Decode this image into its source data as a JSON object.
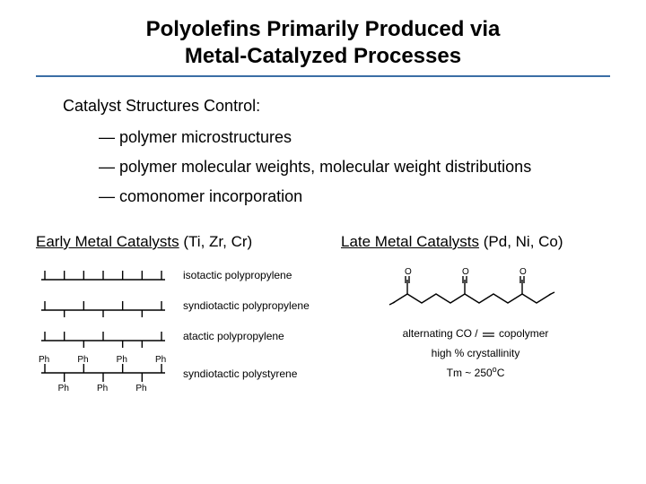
{
  "title_line1": "Polyolefins Primarily Produced via",
  "title_line2": "Metal-Catalyzed Processes",
  "rule_color": "#3b6ea5",
  "lead": "Catalyst Structures Control:",
  "bullets": [
    "— polymer microstructures",
    "— polymer molecular weights, molecular weight distributions",
    "— comonomer incorporation"
  ],
  "left": {
    "heading_underlined": "Early Metal Catalysts",
    "heading_rest": " (Ti, Zr, Cr)",
    "rows": [
      {
        "label": "isotactic polypropylene",
        "type": "iso"
      },
      {
        "label": "syndiotactic polypropylene",
        "type": "syndio"
      },
      {
        "label": "atactic polypropylene",
        "type": "atactic"
      },
      {
        "label": "syndiotactic polystyrene",
        "type": "styrene"
      }
    ],
    "stroke": "#000000"
  },
  "right": {
    "heading_underlined": "Late Metal Catalysts",
    "heading_rest": " (Pd, Ni, Co)",
    "caption_prefix": "alternating CO / ",
    "caption_suffix": " copolymer",
    "crystallinity": "high % crystallinity",
    "tm": "Tm ~ 250",
    "tm_unit_sup": "o",
    "tm_unit": "C",
    "stroke": "#000000"
  },
  "text_color": "#000000"
}
